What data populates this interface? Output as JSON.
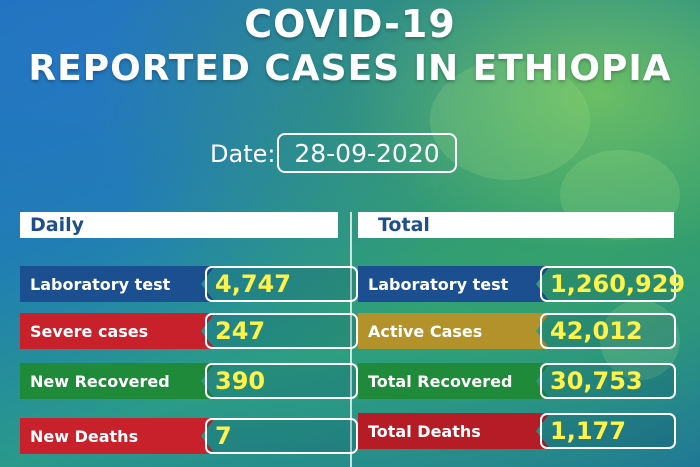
{
  "title_line1": "COVID-19",
  "title_line2": "REPORTED CASES IN ETHIOPIA",
  "date_label": "Date:",
  "date_value": "28-09-2020",
  "daily": {
    "heading": "Daily",
    "rows": [
      {
        "label": "Laboratory test",
        "value": "4,747",
        "color": "#1c4f8f"
      },
      {
        "label": "Severe cases",
        "value": "247",
        "color": "#c8212b"
      },
      {
        "label": "New Recovered",
        "value": "390",
        "color": "#1f8a3a"
      },
      {
        "label": "New Deaths",
        "value": "7",
        "color": "#c8212b"
      }
    ]
  },
  "total": {
    "heading": "Total",
    "rows": [
      {
        "label": "Laboratory test",
        "value": "1,260,929",
        "color": "#1c4f8f"
      },
      {
        "label": "Active Cases",
        "value": "42,012",
        "color": "#b3922c"
      },
      {
        "label": "Total Recovered",
        "value": "30,753",
        "color": "#1f8a3a"
      },
      {
        "label": "Total Deaths",
        "value": "1,177",
        "color": "#b51c25"
      }
    ]
  },
  "value_color": "#fff34a"
}
